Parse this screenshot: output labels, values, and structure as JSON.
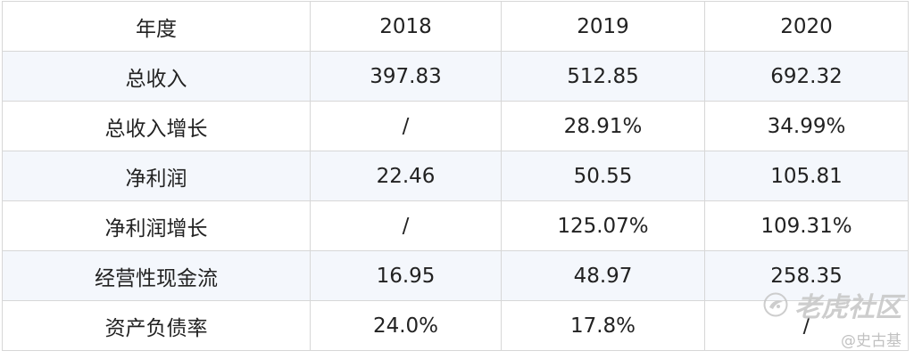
{
  "table": {
    "header": [
      "年度",
      "2018",
      "2019",
      "2020"
    ],
    "rows": [
      [
        "总收入",
        "397.83",
        "512.85",
        "692.32"
      ],
      [
        "总收入增长",
        "/",
        "28.91%",
        "34.99%"
      ],
      [
        "净利润",
        "22.46",
        "50.55",
        "105.81"
      ],
      [
        "净利润增长",
        "/",
        "125.07%",
        "109.31%"
      ],
      [
        "经营性现金流",
        "16.95",
        "48.97",
        "258.35"
      ],
      [
        "资产负债率",
        "24.0%",
        "17.8%",
        "/"
      ]
    ]
  },
  "watermark": {
    "brand": "老虎社区",
    "author": "@史古基",
    "icon": "tiger-logo-icon"
  }
}
